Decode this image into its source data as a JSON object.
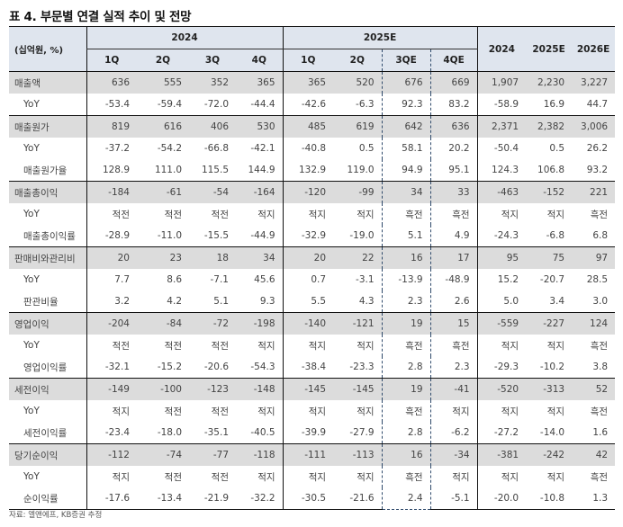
{
  "title": "표 4. 부문별 연결 실적 추이 및 전망",
  "unit_label": "(십억원, %)",
  "year_groups": [
    "2024",
    "2025E"
  ],
  "quarters": [
    "1Q",
    "2Q",
    "3Q",
    "4Q",
    "1Q",
    "2Q",
    "3QE",
    "4QE"
  ],
  "annual": [
    "2024",
    "2025E",
    "2026E"
  ],
  "accent_color": "#2f4a6b",
  "header_bg": "#dfe5ee",
  "main_row_bg": "#dcdcdc",
  "groups": [
    {
      "rows": [
        {
          "label": "매출액",
          "type": "main",
          "values": [
            "636",
            "555",
            "352",
            "365",
            "365",
            "520",
            "676",
            "669",
            "1,907",
            "2,230",
            "3,227"
          ]
        },
        {
          "label": "YoY",
          "type": "sub",
          "values": [
            "-53.4",
            "-59.4",
            "-72.0",
            "-44.4",
            "-42.6",
            "-6.3",
            "92.3",
            "83.2",
            "-58.9",
            "16.9",
            "44.7"
          ]
        }
      ]
    },
    {
      "rows": [
        {
          "label": "매출원가",
          "type": "main",
          "values": [
            "819",
            "616",
            "406",
            "530",
            "485",
            "619",
            "642",
            "636",
            "2,371",
            "2,382",
            "3,006"
          ]
        },
        {
          "label": "YoY",
          "type": "sub",
          "values": [
            "-37.2",
            "-54.2",
            "-66.8",
            "-42.1",
            "-40.8",
            "0.5",
            "58.1",
            "20.2",
            "-50.4",
            "0.5",
            "26.2"
          ]
        },
        {
          "label": "매출원가율",
          "type": "sub",
          "values": [
            "128.9",
            "111.0",
            "115.5",
            "144.9",
            "132.9",
            "119.0",
            "94.9",
            "95.1",
            "124.3",
            "106.8",
            "93.2"
          ]
        }
      ]
    },
    {
      "rows": [
        {
          "label": "매출총이익",
          "type": "main",
          "values": [
            "-184",
            "-61",
            "-54",
            "-164",
            "-120",
            "-99",
            "34",
            "33",
            "-463",
            "-152",
            "221"
          ]
        },
        {
          "label": "YoY",
          "type": "sub",
          "values": [
            "적전",
            "적전",
            "적전",
            "적지",
            "적지",
            "적지",
            "흑전",
            "흑전",
            "적지",
            "적지",
            "흑전"
          ]
        },
        {
          "label": "매출총이익률",
          "type": "sub",
          "values": [
            "-28.9",
            "-11.0",
            "-15.5",
            "-44.9",
            "-32.9",
            "-19.0",
            "5.1",
            "4.9",
            "-24.3",
            "-6.8",
            "6.8"
          ]
        }
      ]
    },
    {
      "rows": [
        {
          "label": "판매비와관리비",
          "type": "main",
          "values": [
            "20",
            "23",
            "18",
            "34",
            "20",
            "22",
            "16",
            "17",
            "95",
            "75",
            "97"
          ]
        },
        {
          "label": "YoY",
          "type": "sub",
          "values": [
            "7.7",
            "8.6",
            "-7.1",
            "45.6",
            "0.7",
            "-3.1",
            "-13.9",
            "-48.9",
            "15.2",
            "-20.7",
            "28.5"
          ]
        },
        {
          "label": "판관비율",
          "type": "sub",
          "values": [
            "3.2",
            "4.2",
            "5.1",
            "9.3",
            "5.5",
            "4.3",
            "2.3",
            "2.6",
            "5.0",
            "3.4",
            "3.0"
          ]
        }
      ]
    },
    {
      "rows": [
        {
          "label": "영업이익",
          "type": "main",
          "values": [
            "-204",
            "-84",
            "-72",
            "-198",
            "-140",
            "-121",
            "19",
            "15",
            "-559",
            "-227",
            "124"
          ]
        },
        {
          "label": "YoY",
          "type": "sub",
          "values": [
            "적전",
            "적전",
            "적전",
            "적지",
            "적지",
            "적지",
            "흑전",
            "흑전",
            "적지",
            "적지",
            "흑전"
          ]
        },
        {
          "label": "영업이익률",
          "type": "sub",
          "values": [
            "-32.1",
            "-15.2",
            "-20.6",
            "-54.3",
            "-38.4",
            "-23.3",
            "2.8",
            "2.3",
            "-29.3",
            "-10.2",
            "3.8"
          ]
        }
      ]
    },
    {
      "rows": [
        {
          "label": "세전이익",
          "type": "main",
          "values": [
            "-149",
            "-100",
            "-123",
            "-148",
            "-145",
            "-145",
            "19",
            "-41",
            "-520",
            "-313",
            "52"
          ]
        },
        {
          "label": "YoY",
          "type": "sub",
          "values": [
            "적지",
            "적전",
            "적전",
            "적지",
            "적지",
            "적지",
            "흑전",
            "적지",
            "적지",
            "적지",
            "흑전"
          ]
        },
        {
          "label": "세전이익률",
          "type": "sub",
          "values": [
            "-23.4",
            "-18.0",
            "-35.1",
            "-40.5",
            "-39.9",
            "-27.9",
            "2.8",
            "-6.2",
            "-27.2",
            "-14.0",
            "1.6"
          ]
        }
      ]
    },
    {
      "rows": [
        {
          "label": "당기순이익",
          "type": "main",
          "values": [
            "-112",
            "-74",
            "-77",
            "-118",
            "-111",
            "-113",
            "16",
            "-34",
            "-381",
            "-242",
            "42"
          ]
        },
        {
          "label": "YoY",
          "type": "sub",
          "values": [
            "적지",
            "적전",
            "적전",
            "적지",
            "적지",
            "적지",
            "흑전",
            "적지",
            "적지",
            "적지",
            "흑전"
          ]
        },
        {
          "label": "순이익률",
          "type": "sub",
          "values": [
            "-17.6",
            "-13.4",
            "-21.9",
            "-32.2",
            "-30.5",
            "-21.6",
            "2.4",
            "-5.1",
            "-20.0",
            "-10.8",
            "1.3"
          ]
        }
      ]
    }
  ],
  "source": "자료: 엘앤에프, KB증권 추정"
}
